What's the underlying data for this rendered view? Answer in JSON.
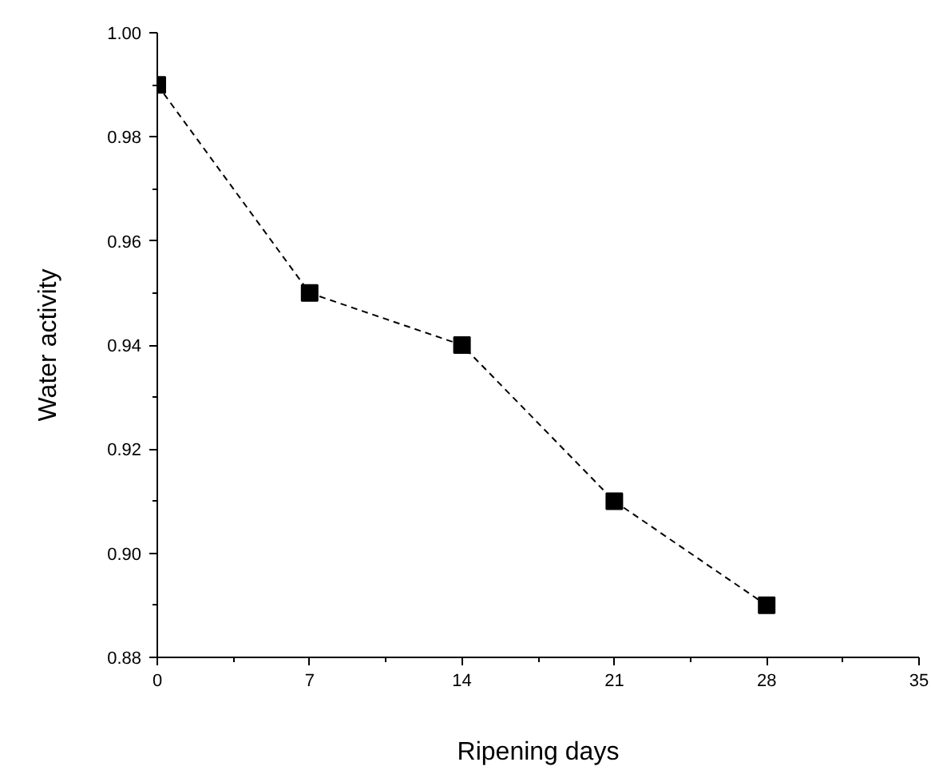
{
  "chart_data": {
    "type": "line",
    "xlabel": "Ripening days",
    "ylabel": "Water activity",
    "x": [
      0,
      7,
      14,
      21,
      28
    ],
    "series": [
      {
        "color": "#000000",
        "values": [
          0.99,
          0.95,
          0.94,
          0.91,
          0.89
        ]
      }
    ],
    "xlim": [
      0,
      35
    ],
    "xticks": [
      0,
      7,
      14,
      21,
      28,
      35
    ],
    "ylim": [
      0.88,
      1.0
    ],
    "yticks": [
      {
        "value": 0.88,
        "label": "0.88"
      },
      {
        "value": 0.9,
        "label": "0.90"
      },
      {
        "value": 0.92,
        "label": "0.92"
      },
      {
        "value": 0.94,
        "label": "0.94"
      },
      {
        "value": 0.96,
        "label": "0.96"
      },
      {
        "value": 0.98,
        "label": "0.98"
      },
      {
        "value": 1.0,
        "label": "1.00"
      }
    ],
    "marker": "square",
    "line_style": "dashed",
    "grid": false
  }
}
